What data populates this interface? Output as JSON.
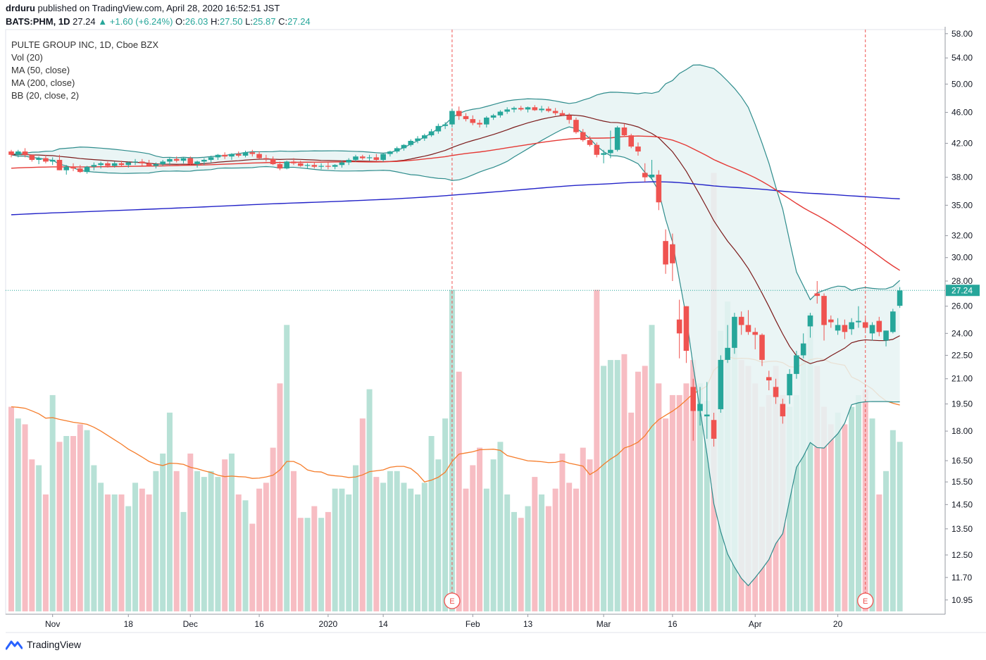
{
  "header": {
    "publisher": "drduru",
    "published_line": "published on TradingView.com, April 28, 2020 16:52:51 JST",
    "symbol": "BATS:PHM, 1D",
    "last": "27.24",
    "change": "+1.60 (+6.24%)",
    "o_label": "O:",
    "o": "26.03",
    "h_label": "H:",
    "h": "27.50",
    "l_label": "L:",
    "l": "25.87",
    "c_label": "C:",
    "c": "27.24"
  },
  "legend": {
    "title": "PULTE GROUP INC, 1D, Cboe BZX",
    "vol": "Vol (20)",
    "ma50": "MA (50, close)",
    "ma200": "MA (200, close)",
    "bb": "BB (20, close, 2)"
  },
  "footer": {
    "brand": "TradingView"
  },
  "colors": {
    "up": "#26a69a",
    "down": "#ef5350",
    "ma50": "#e53935",
    "ma200": "#2323c8",
    "bb_mid": "#7b1a1a",
    "bb_band": "#2e8c8c",
    "bb_fill": "#e6f3f3",
    "vol_ma": "#f57c2a",
    "price_line": "#26a69a",
    "earnings": "#ef5350"
  },
  "chart_data": {
    "type": "candlestick",
    "y_scale": "log",
    "ylim": [
      10.5,
      58.7
    ],
    "y_ticks": [
      "58.00",
      "54.00",
      "50.00",
      "46.00",
      "42.00",
      "38.00",
      "35.00",
      "32.00",
      "30.00",
      "28.00",
      "26.00",
      "24.00",
      "22.50",
      "21.00",
      "19.50",
      "18.00",
      "16.50",
      "15.50",
      "14.50",
      "13.50",
      "12.50",
      "11.70",
      "10.95"
    ],
    "x_ticks": [
      {
        "label": "Nov",
        "i": 6
      },
      {
        "label": "18",
        "i": 17
      },
      {
        "label": "Dec",
        "i": 26
      },
      {
        "label": "16",
        "i": 36
      },
      {
        "label": "2020",
        "i": 46
      },
      {
        "label": "14",
        "i": 54
      },
      {
        "label": "Feb",
        "i": 67
      },
      {
        "label": "13",
        "i": 75
      },
      {
        "label": "Mar",
        "i": 86
      },
      {
        "label": "16",
        "i": 96
      },
      {
        "label": "Apr",
        "i": 108
      },
      {
        "label": "20",
        "i": 120
      }
    ],
    "last_price": "27.24",
    "earnings_markers": [
      {
        "label": "E",
        "i": 64
      },
      {
        "label": "E",
        "i": 124
      }
    ],
    "candles": [
      [
        41.0,
        41.2,
        40.3,
        40.6
      ],
      [
        40.6,
        41.2,
        40.3,
        41.0
      ],
      [
        41.0,
        41.4,
        40.3,
        40.6
      ],
      [
        40.6,
        40.6,
        39.8,
        40.0
      ],
      [
        40.0,
        40.4,
        39.5,
        40.2
      ],
      [
        40.2,
        40.6,
        39.6,
        39.8
      ],
      [
        39.8,
        40.3,
        39.4,
        40.0
      ],
      [
        40.0,
        40.6,
        38.8,
        38.8
      ],
      [
        38.8,
        39.4,
        38.3,
        39.2
      ],
      [
        39.2,
        39.6,
        38.7,
        39.0
      ],
      [
        39.0,
        39.4,
        38.5,
        38.6
      ],
      [
        38.6,
        39.3,
        38.4,
        39.2
      ],
      [
        39.2,
        39.7,
        38.8,
        39.4
      ],
      [
        39.4,
        39.8,
        39.0,
        39.6
      ],
      [
        39.6,
        39.8,
        39.1,
        39.3
      ],
      [
        39.3,
        39.8,
        39.1,
        39.6
      ],
      [
        39.6,
        39.9,
        39.2,
        39.4
      ],
      [
        39.4,
        39.8,
        39.1,
        39.7
      ],
      [
        39.7,
        40.1,
        39.4,
        39.8
      ],
      [
        39.8,
        40.1,
        39.3,
        39.6
      ],
      [
        39.6,
        40.0,
        39.2,
        39.3
      ],
      [
        39.3,
        39.7,
        39.0,
        39.5
      ],
      [
        39.5,
        40.0,
        39.3,
        39.8
      ],
      [
        39.8,
        40.3,
        39.4,
        40.1
      ],
      [
        40.1,
        40.4,
        39.7,
        39.9
      ],
      [
        39.9,
        40.3,
        39.6,
        40.2
      ],
      [
        40.2,
        40.4,
        39.4,
        39.5
      ],
      [
        39.5,
        39.9,
        39.1,
        39.8
      ],
      [
        39.8,
        40.2,
        39.4,
        40.0
      ],
      [
        40.0,
        40.5,
        39.7,
        40.3
      ],
      [
        40.3,
        40.7,
        40.0,
        40.6
      ],
      [
        40.6,
        40.9,
        40.1,
        40.4
      ],
      [
        40.4,
        40.8,
        40.0,
        40.7
      ],
      [
        40.7,
        41.0,
        40.3,
        40.5
      ],
      [
        40.5,
        41.1,
        40.3,
        40.9
      ],
      [
        40.9,
        41.2,
        40.4,
        40.7
      ],
      [
        40.7,
        41.0,
        40.1,
        40.2
      ],
      [
        40.2,
        40.6,
        39.8,
        40.1
      ],
      [
        40.1,
        40.4,
        39.4,
        39.5
      ],
      [
        39.5,
        39.8,
        38.8,
        39.0
      ],
      [
        39.0,
        39.9,
        38.9,
        39.8
      ],
      [
        39.8,
        40.2,
        39.4,
        39.6
      ],
      [
        39.6,
        39.9,
        39.2,
        39.3
      ],
      [
        39.3,
        39.6,
        39.0,
        39.4
      ],
      [
        39.4,
        39.8,
        39.0,
        39.2
      ],
      [
        39.2,
        39.6,
        38.9,
        39.3
      ],
      [
        39.3,
        39.7,
        38.9,
        39.2
      ],
      [
        39.2,
        39.5,
        38.9,
        39.4
      ],
      [
        39.4,
        39.9,
        39.1,
        39.7
      ],
      [
        39.7,
        40.2,
        39.4,
        40.0
      ],
      [
        40.0,
        40.6,
        39.8,
        40.4
      ],
      [
        40.4,
        40.6,
        40.0,
        40.2
      ],
      [
        40.2,
        40.6,
        39.9,
        40.3
      ],
      [
        40.3,
        40.7,
        39.9,
        40.0
      ],
      [
        40.0,
        40.8,
        39.8,
        40.7
      ],
      [
        40.7,
        41.1,
        40.4,
        41.0
      ],
      [
        41.0,
        41.6,
        40.8,
        41.4
      ],
      [
        41.4,
        41.9,
        41.1,
        41.8
      ],
      [
        41.8,
        42.5,
        41.6,
        42.3
      ],
      [
        42.3,
        42.9,
        42.0,
        42.6
      ],
      [
        42.6,
        43.2,
        42.3,
        43.0
      ],
      [
        43.0,
        43.8,
        42.8,
        43.5
      ],
      [
        43.5,
        44.5,
        43.2,
        44.2
      ],
      [
        44.2,
        44.7,
        43.8,
        44.4
      ],
      [
        44.4,
        46.5,
        44.0,
        46.2
      ],
      [
        46.2,
        46.8,
        45.0,
        45.5
      ],
      [
        45.5,
        45.9,
        44.8,
        45.1
      ],
      [
        45.1,
        45.6,
        44.3,
        44.6
      ],
      [
        44.6,
        45.0,
        44.0,
        44.4
      ],
      [
        44.4,
        45.5,
        44.0,
        45.3
      ],
      [
        45.3,
        45.8,
        45.0,
        45.6
      ],
      [
        45.6,
        46.3,
        45.3,
        46.1
      ],
      [
        46.1,
        46.7,
        45.8,
        46.4
      ],
      [
        46.4,
        46.8,
        46.0,
        46.6
      ],
      [
        46.6,
        46.9,
        46.2,
        46.4
      ],
      [
        46.4,
        46.8,
        46.0,
        46.7
      ],
      [
        46.7,
        47.0,
        46.2,
        46.3
      ],
      [
        46.3,
        46.9,
        46.0,
        46.5
      ],
      [
        46.5,
        46.8,
        46.0,
        46.2
      ],
      [
        46.2,
        46.6,
        45.6,
        45.9
      ],
      [
        45.9,
        46.3,
        45.5,
        45.6
      ],
      [
        45.6,
        45.9,
        44.5,
        45.0
      ],
      [
        45.0,
        45.3,
        43.2,
        43.4
      ],
      [
        43.4,
        43.8,
        42.2,
        42.4
      ],
      [
        42.4,
        42.9,
        41.6,
        41.8
      ],
      [
        41.8,
        42.1,
        40.3,
        40.6
      ],
      [
        40.6,
        41.2,
        39.6,
        40.8
      ],
      [
        40.8,
        43.6,
        40.2,
        41.2
      ],
      [
        41.2,
        44.2,
        41.0,
        44.0
      ],
      [
        44.0,
        44.5,
        42.8,
        43.0
      ],
      [
        43.0,
        43.2,
        41.4,
        41.6
      ],
      [
        41.6,
        42.1,
        40.5,
        41.0
      ],
      [
        38.5,
        39.6,
        37.5,
        38.0
      ],
      [
        38.0,
        40.0,
        37.7,
        38.3
      ],
      [
        38.3,
        38.8,
        34.5,
        35.3
      ],
      [
        31.5,
        32.6,
        28.6,
        29.4
      ],
      [
        31.2,
        32.2,
        28.0,
        29.5
      ],
      [
        25.0,
        26.5,
        22.3,
        24.0
      ],
      [
        26.0,
        26.0,
        22.0,
        22.8
      ],
      [
        20.5,
        21.0,
        17.5,
        19.1
      ],
      [
        19.1,
        20.5,
        18.3,
        19.5
      ],
      [
        18.8,
        20.8,
        17.6,
        18.9
      ],
      [
        18.6,
        19.0,
        17.2,
        17.6
      ],
      [
        19.2,
        22.5,
        19.0,
        22.2
      ],
      [
        22.2,
        24.6,
        22.0,
        23.0
      ],
      [
        23.0,
        25.5,
        22.6,
        25.2
      ],
      [
        25.2,
        25.6,
        23.9,
        24.6
      ],
      [
        24.6,
        25.7,
        23.9,
        24.1
      ],
      [
        24.1,
        24.4,
        22.9,
        23.9
      ],
      [
        23.9,
        24.0,
        21.8,
        22.2
      ],
      [
        21.1,
        21.5,
        20.3,
        20.9
      ],
      [
        20.5,
        21.0,
        19.5,
        19.9
      ],
      [
        19.5,
        19.8,
        18.4,
        18.8
      ],
      [
        20.0,
        21.6,
        19.5,
        21.3
      ],
      [
        21.3,
        22.8,
        21.0,
        22.5
      ],
      [
        22.5,
        24.0,
        22.3,
        23.3
      ],
      [
        24.5,
        25.5,
        23.7,
        25.3
      ],
      [
        27.0,
        28.0,
        26.2,
        26.8
      ],
      [
        26.8,
        27.0,
        23.5,
        24.6
      ],
      [
        25.0,
        25.3,
        24.4,
        24.8
      ],
      [
        24.2,
        25.1,
        23.9,
        24.6
      ],
      [
        24.6,
        25.0,
        23.6,
        24.1
      ],
      [
        24.3,
        25.1,
        23.9,
        24.8
      ],
      [
        24.8,
        26.0,
        24.4,
        24.9
      ],
      [
        24.8,
        25.1,
        24.2,
        24.4
      ],
      [
        24.0,
        24.8,
        23.5,
        24.6
      ],
      [
        24.9,
        25.2,
        23.8,
        24.1
      ],
      [
        23.5,
        24.2,
        23.1,
        24.2
      ],
      [
        24.1,
        25.8,
        24.0,
        25.6
      ],
      [
        26.03,
        27.5,
        25.87,
        27.24
      ]
    ],
    "volume_ratio": [
      0.35,
      0.33,
      0.32,
      0.26,
      0.25,
      0.2,
      0.37,
      0.29,
      0.3,
      0.3,
      0.32,
      0.31,
      0.25,
      0.22,
      0.2,
      0.2,
      0.2,
      0.18,
      0.22,
      0.21,
      0.2,
      0.24,
      0.27,
      0.34,
      0.24,
      0.17,
      0.27,
      0.24,
      0.23,
      0.24,
      0.23,
      0.26,
      0.27,
      0.2,
      0.19,
      0.15,
      0.21,
      0.22,
      0.28,
      0.39,
      0.49,
      0.24,
      0.16,
      0.16,
      0.18,
      0.16,
      0.17,
      0.21,
      0.21,
      0.2,
      0.25,
      0.33,
      0.38,
      0.23,
      0.22,
      0.24,
      0.24,
      0.22,
      0.21,
      0.2,
      0.22,
      0.3,
      0.26,
      0.33,
      0.55,
      0.41,
      0.21,
      0.25,
      0.28,
      0.21,
      0.26,
      0.29,
      0.2,
      0.17,
      0.16,
      0.18,
      0.23,
      0.2,
      0.18,
      0.21,
      0.27,
      0.22,
      0.21,
      0.28,
      0.26,
      0.55,
      0.42,
      0.43,
      0.43,
      0.44,
      0.34,
      0.41,
      0.42,
      0.49,
      0.39,
      0.33,
      0.37,
      0.37,
      0.39,
      0.43,
      0.39,
      0.36,
      0.75,
      0.48,
      0.53,
      0.48,
      0.43,
      0.42,
      0.39,
      0.35,
      0.37,
      0.42,
      0.37,
      0.35,
      0.37,
      0.45,
      0.51,
      0.42,
      0.35,
      0.32,
      0.34,
      0.32,
      0.35,
      0.37,
      0.38,
      0.33,
      0.2,
      0.24,
      0.31,
      0.29
    ]
  }
}
